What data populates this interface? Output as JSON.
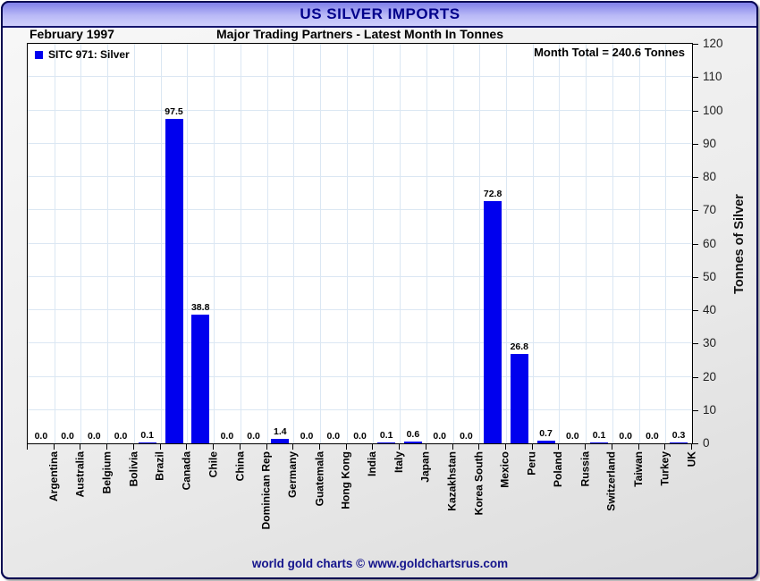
{
  "titlebar": {
    "title": "US SILVER IMPORTS"
  },
  "header": {
    "date": "February 1997",
    "subtitle": "Major Trading Partners - Latest Month In Tonnes"
  },
  "plot": {
    "legend_label": "SITC 971: Silver",
    "month_total": "Month Total = 240.6 Tonnes"
  },
  "footer": {
    "credit": "world gold charts © www.goldchartsrus.com"
  },
  "colors": {
    "bar": "#0000ee",
    "title_text": "#00008b",
    "grid": "#dbe7f3",
    "footer_text": "#14148c",
    "titlebar_top": "#7f7fe9",
    "titlebar_bottom": "#cfcffc"
  },
  "chart_data": {
    "type": "bar",
    "title": "US SILVER IMPORTS",
    "subtitle": "Major Trading Partners - Latest Month In Tonnes",
    "period": "February 1997",
    "series_name": "SITC 971: Silver",
    "month_total_tonnes": 240.6,
    "categories": [
      "Argentina",
      "Australia",
      "Belgium",
      "Bolivia",
      "Brazil",
      "Canada",
      "Chile",
      "China",
      "Dominican Rep",
      "Germany",
      "Guatemala",
      "Hong Kong",
      "India",
      "Italy",
      "Japan",
      "Kazakhstan",
      "Korea South",
      "Mexico",
      "Peru",
      "Poland",
      "Russia",
      "Switzerland",
      "Taiwan",
      "Turkey",
      "UK"
    ],
    "values": [
      0.0,
      0.0,
      0.0,
      0.0,
      0.1,
      97.5,
      38.8,
      0.0,
      0.0,
      1.4,
      0.0,
      0.0,
      0.0,
      0.1,
      0.6,
      0.0,
      0.0,
      72.8,
      26.8,
      0.7,
      0.0,
      0.1,
      0.0,
      0.0,
      0.3
    ],
    "value_label_decimals": 1,
    "ylabel": "Tonnes of Silver",
    "ylim": [
      0,
      120
    ],
    "ytick_step": 10,
    "grid": true,
    "legend_position": "top-left"
  }
}
